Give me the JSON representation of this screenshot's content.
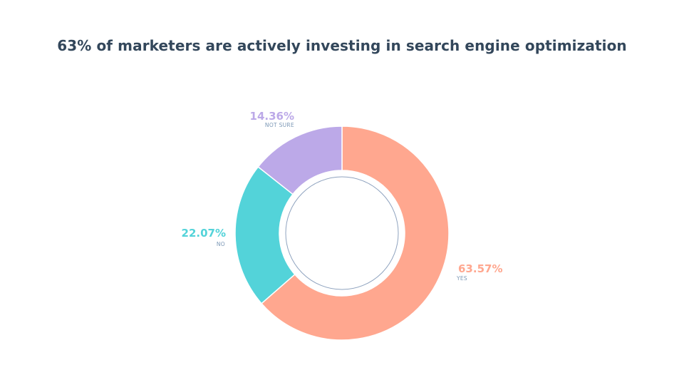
{
  "chart_data": {
    "type": "pie",
    "title": "63% of marketers are actively investing in search engine optimization",
    "donut": true,
    "categories": [
      "YES",
      "NO",
      "NOT SURE"
    ],
    "values": [
      63.57,
      22.07,
      14.36
    ],
    "value_labels": [
      "63.57%",
      "22.07%",
      "14.36%"
    ],
    "colors": [
      "#ffa78f",
      "#53d3d9",
      "#bca9e8"
    ],
    "start_angle_degrees": 0,
    "direction": "clockwise",
    "legend": "none"
  }
}
